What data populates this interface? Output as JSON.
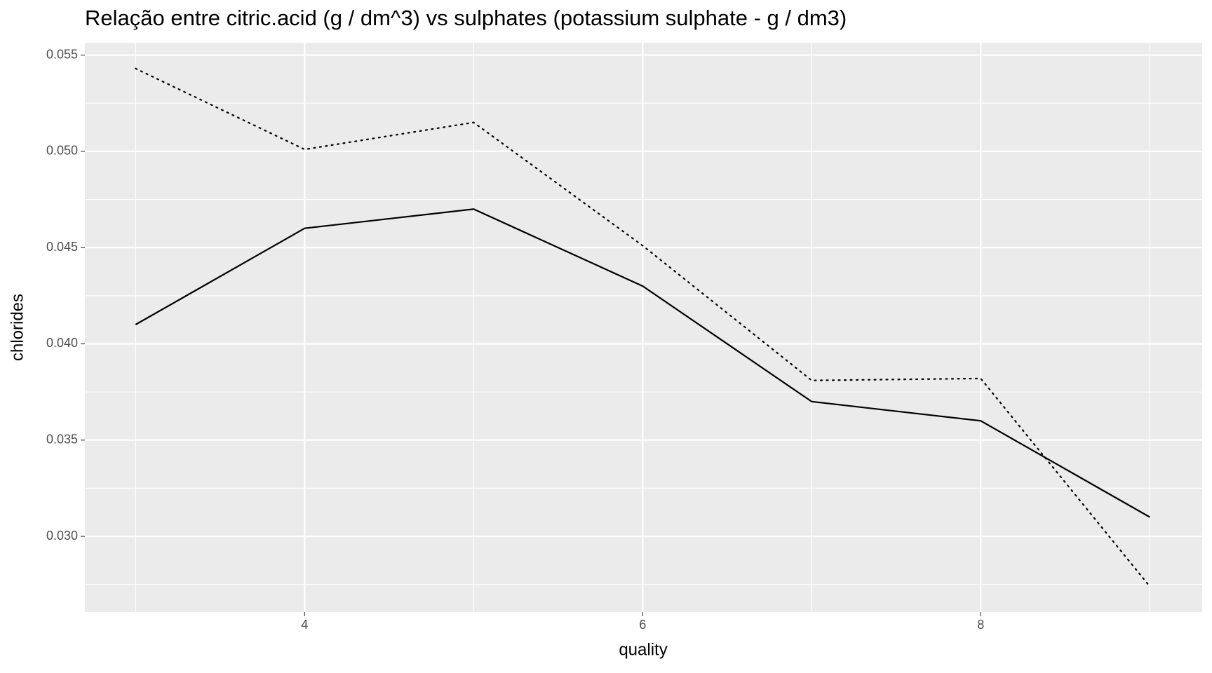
{
  "chart_data": {
    "type": "line",
    "title": "Relação entre citric.acid (g / dm^3) vs sulphates (potassium sulphate - g / dm3)",
    "x_label": "quality",
    "y_label": "chlorides",
    "x": [
      3,
      4,
      5,
      6,
      7,
      8,
      9
    ],
    "series": [
      {
        "color": "#000000",
        "dash": "solid",
        "values": [
          0.041,
          0.046,
          0.047,
          0.043,
          0.037,
          0.036,
          0.031
        ]
      },
      {
        "color": "#000000",
        "dash": "dotted",
        "values": [
          0.0543,
          0.0501,
          0.0515,
          0.0451,
          0.0381,
          0.0382,
          0.0274
        ]
      }
    ],
    "xlim": [
      2.7,
      9.31
    ],
    "xticks": [
      4,
      6,
      8
    ],
    "ylim": [
      0.02607,
      0.05564
    ],
    "yticks": [
      {
        "value": 0.03,
        "label": "0.030"
      },
      {
        "value": 0.035,
        "label": "0.035"
      },
      {
        "value": 0.04,
        "label": "0.040"
      },
      {
        "value": 0.045,
        "label": "0.045"
      },
      {
        "value": 0.05,
        "label": "0.050"
      },
      {
        "value": 0.055,
        "label": "0.055"
      }
    ],
    "grid": true,
    "minor_grid": true,
    "panel_color": "#ebebeb"
  }
}
